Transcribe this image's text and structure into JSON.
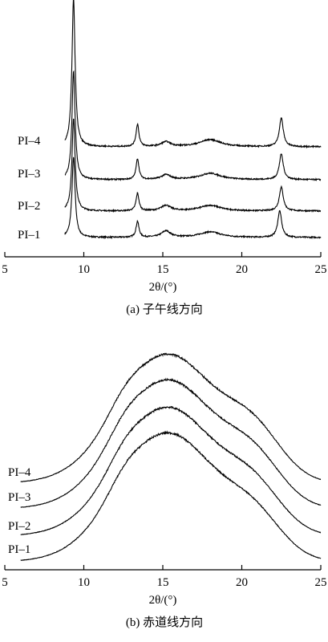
{
  "chart_data": [
    {
      "type": "line",
      "subtitle": "(a)  子午线方向",
      "xlabel": "2θ/(°)",
      "xlim": [
        5,
        25
      ],
      "xticks": [
        5,
        10,
        15,
        20,
        25
      ],
      "grid": false,
      "series": [
        {
          "name": "PI–1",
          "peaks": [
            [
              9.35,
              100
            ],
            [
              13.4,
              20
            ],
            [
              15.2,
              8
            ],
            [
              18.0,
              7
            ],
            [
              22.4,
              33
            ]
          ]
        },
        {
          "name": "PI–2",
          "peaks": [
            [
              9.35,
              115
            ],
            [
              13.4,
              22
            ],
            [
              15.2,
              7
            ],
            [
              18.0,
              7
            ],
            [
              22.5,
              30
            ]
          ]
        },
        {
          "name": "PI–3",
          "peaks": [
            [
              9.35,
              135
            ],
            [
              13.4,
              26
            ],
            [
              15.2,
              6
            ],
            [
              18.0,
              8
            ],
            [
              22.5,
              32
            ]
          ]
        },
        {
          "name": "PI–4",
          "peaks": [
            [
              9.35,
              185
            ],
            [
              13.4,
              28
            ],
            [
              15.2,
              6
            ],
            [
              18.0,
              9
            ],
            [
              22.5,
              36
            ]
          ]
        }
      ]
    },
    {
      "type": "line",
      "subtitle": "(b)  赤道线方向",
      "xlabel": "2θ/(°)",
      "xlim": [
        5,
        25
      ],
      "xticks": [
        5,
        10,
        15,
        20,
        25
      ],
      "grid": false,
      "series": [
        {
          "name": "PI–1",
          "peaks": [
            [
              15.3,
              160
            ],
            [
              20.8,
              45
            ]
          ]
        },
        {
          "name": "PI–2",
          "peaks": [
            [
              15.3,
              160
            ],
            [
              20.8,
              48
            ]
          ]
        },
        {
          "name": "PI–3",
          "peaks": [
            [
              15.3,
              160
            ],
            [
              20.8,
              50
            ]
          ]
        },
        {
          "name": "PI–4",
          "peaks": [
            [
              15.3,
              160
            ],
            [
              20.8,
              52
            ]
          ]
        }
      ]
    }
  ]
}
